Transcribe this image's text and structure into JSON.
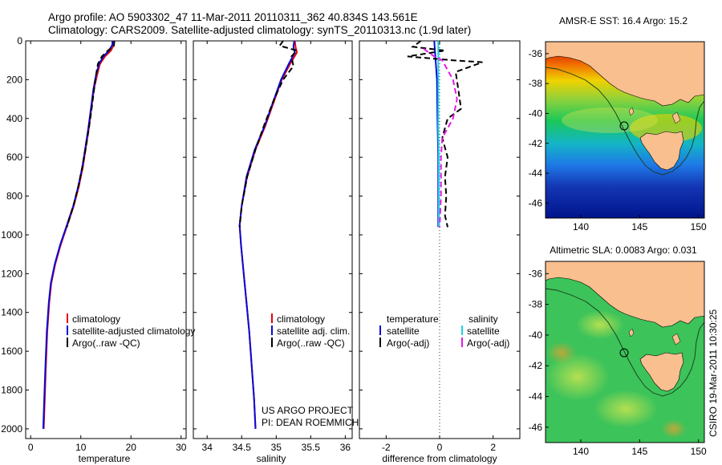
{
  "header": {
    "line1": "Argo profile: AO 5903302_47 11-Mar-2011 20110311_362 40.834S 143.561E",
    "line2": "Climatology: CARS2009. Satellite-adjusted climatology: synTS_20110313.nc (1.9d later)"
  },
  "side_text": "CSIRO 19-Mar-2011 10:30:25",
  "credit": {
    "line1": "US ARGO PROJECT",
    "line2": "PI: DEAN ROEMMICH"
  },
  "colors": {
    "climatology": "#e8000b",
    "satellite": "#0a0ad8",
    "argo": "#000000",
    "sat_salinity": "#19d2e6",
    "argo_salinity": "#e619e6",
    "land": "#f9bf8f",
    "map_line": "#1a3a1a"
  },
  "chart_data": [
    {
      "type": "line",
      "name": "temperature-profile",
      "xlabel": "temperature",
      "xlim": [
        -1,
        31
      ],
      "ylim": [
        2050,
        0
      ],
      "xticks": [
        0,
        10,
        20,
        30
      ],
      "yticks": [
        0,
        200,
        400,
        600,
        800,
        1000,
        1200,
        1400,
        1600,
        1800,
        2000
      ],
      "legend": [
        "climatology",
        "satellite-adjusted climatology",
        "Argo(..raw -QC)"
      ],
      "series": [
        {
          "name": "climatology",
          "color": "#e8000b",
          "points": [
            [
              16.6,
              0
            ],
            [
              16.6,
              20
            ],
            [
              16.0,
              50
            ],
            [
              14.8,
              80
            ],
            [
              13.8,
              120
            ],
            [
              13.2,
              180
            ],
            [
              12.6,
              250
            ],
            [
              12.1,
              350
            ],
            [
              11.6,
              450
            ],
            [
              11.0,
              550
            ],
            [
              10.4,
              650
            ],
            [
              9.6,
              750
            ],
            [
              8.6,
              850
            ],
            [
              7.3,
              950
            ],
            [
              6.0,
              1050
            ],
            [
              4.9,
              1150
            ],
            [
              4.1,
              1250
            ],
            [
              3.7,
              1350
            ],
            [
              3.3,
              1500
            ],
            [
              3.0,
              1700
            ],
            [
              2.8,
              1850
            ],
            [
              2.6,
              2000
            ]
          ]
        },
        {
          "name": "satellite-adjusted climatology",
          "color": "#0a0ad8",
          "points": [
            [
              16.3,
              0
            ],
            [
              16.3,
              20
            ],
            [
              15.6,
              50
            ],
            [
              14.5,
              80
            ],
            [
              13.6,
              120
            ],
            [
              13.0,
              180
            ],
            [
              12.5,
              250
            ],
            [
              12.0,
              350
            ],
            [
              11.5,
              450
            ],
            [
              10.9,
              550
            ],
            [
              10.3,
              650
            ],
            [
              9.5,
              750
            ],
            [
              8.5,
              850
            ],
            [
              7.2,
              950
            ],
            [
              5.9,
              1050
            ],
            [
              4.8,
              1150
            ],
            [
              4.0,
              1250
            ],
            [
              3.6,
              1350
            ],
            [
              3.2,
              1500
            ],
            [
              2.9,
              1700
            ],
            [
              2.7,
              1850
            ],
            [
              2.5,
              2000
            ]
          ]
        },
        {
          "name": "Argo(..raw -QC)",
          "color": "#000000",
          "dash": true,
          "points": [
            [
              16.7,
              0
            ],
            [
              16.6,
              25
            ],
            [
              15.4,
              50
            ],
            [
              14.2,
              80
            ],
            [
              13.4,
              120
            ],
            [
              13.0,
              180
            ],
            [
              12.6,
              260
            ],
            [
              12.1,
              360
            ],
            [
              11.6,
              450
            ],
            [
              11.0,
              550
            ],
            [
              10.3,
              650
            ],
            [
              9.5,
              750
            ],
            [
              8.5,
              850
            ],
            [
              7.2,
              960
            ]
          ]
        }
      ]
    },
    {
      "type": "line",
      "name": "salinity-profile",
      "xlabel": "salinity",
      "xlim": [
        33.8,
        36.1
      ],
      "ylim": [
        2050,
        0
      ],
      "xticks": [
        34,
        34.5,
        35,
        35.5,
        36
      ],
      "legend": [
        "climatology",
        "satellite adj. clim.",
        "Argo(..raw -QC)"
      ],
      "series": [
        {
          "name": "climatology",
          "color": "#e8000b",
          "points": [
            [
              35.27,
              0
            ],
            [
              35.28,
              30
            ],
            [
              35.3,
              60
            ],
            [
              35.2,
              120
            ],
            [
              35.08,
              200
            ],
            [
              34.98,
              300
            ],
            [
              34.84,
              440
            ],
            [
              34.7,
              560
            ],
            [
              34.58,
              700
            ],
            [
              34.5,
              850
            ],
            [
              34.47,
              950
            ],
            [
              34.49,
              1050
            ],
            [
              34.53,
              1200
            ],
            [
              34.57,
              1350
            ],
            [
              34.61,
              1500
            ],
            [
              34.65,
              1700
            ],
            [
              34.68,
              1850
            ],
            [
              34.7,
              2000
            ]
          ]
        },
        {
          "name": "satellite adj. clim.",
          "color": "#0a0ad8",
          "points": [
            [
              35.26,
              0
            ],
            [
              35.25,
              30
            ],
            [
              35.27,
              60
            ],
            [
              35.18,
              120
            ],
            [
              35.07,
              200
            ],
            [
              34.97,
              300
            ],
            [
              34.83,
              440
            ],
            [
              34.69,
              560
            ],
            [
              34.57,
              700
            ],
            [
              34.5,
              850
            ],
            [
              34.47,
              950
            ],
            [
              34.49,
              1050
            ],
            [
              34.53,
              1200
            ],
            [
              34.57,
              1350
            ],
            [
              34.61,
              1500
            ],
            [
              34.65,
              1700
            ],
            [
              34.68,
              1850
            ],
            [
              34.7,
              2000
            ]
          ]
        },
        {
          "name": "Argo(..raw -QC)",
          "color": "#000000",
          "dash": true,
          "points": [
            [
              35.1,
              0
            ],
            [
              35.05,
              25
            ],
            [
              35.3,
              50
            ],
            [
              35.22,
              80
            ],
            [
              35.25,
              130
            ],
            [
              35.1,
              200
            ],
            [
              34.97,
              300
            ],
            [
              34.83,
              430
            ],
            [
              34.7,
              560
            ],
            [
              34.58,
              700
            ],
            [
              34.5,
              850
            ],
            [
              34.47,
              960
            ]
          ]
        }
      ]
    },
    {
      "type": "line",
      "name": "difference-profile",
      "xlabel": "difference from climatology",
      "xlim": [
        -3.0,
        3.0
      ],
      "ylim": [
        2050,
        0
      ],
      "xticks": [
        -2,
        0,
        2
      ],
      "legend_columns": [
        {
          "title": "temperature",
          "items": [
            "satellite",
            "Argo(-adj)"
          ]
        },
        {
          "title": "salinity",
          "items": [
            "satellite",
            "Argo(-adj)"
          ]
        }
      ],
      "zero_line": 0,
      "series": [
        {
          "name": "temperature satellite",
          "color": "#0a0ad8",
          "points": [
            [
              -0.2,
              0
            ],
            [
              -0.15,
              100
            ],
            [
              -0.1,
              200
            ],
            [
              -0.08,
              400
            ],
            [
              -0.05,
              600
            ],
            [
              -0.05,
              800
            ],
            [
              -0.05,
              960
            ]
          ]
        },
        {
          "name": "temperature Argo(-adj)",
          "color": "#000000",
          "dash": true,
          "points": [
            [
              -0.7,
              0
            ],
            [
              -1.0,
              30
            ],
            [
              0.2,
              50
            ],
            [
              -1.2,
              80
            ],
            [
              0.5,
              100
            ],
            [
              1.6,
              110
            ],
            [
              0.6,
              160
            ],
            [
              0.7,
              250
            ],
            [
              0.8,
              350
            ],
            [
              0.3,
              400
            ],
            [
              0.1,
              500
            ],
            [
              0.3,
              600
            ],
            [
              0.2,
              700
            ],
            [
              0.25,
              800
            ],
            [
              0.2,
              900
            ],
            [
              0.3,
              960
            ]
          ]
        },
        {
          "name": "salinity satellite",
          "color": "#19d2e6",
          "points": [
            [
              -0.05,
              0
            ],
            [
              -0.05,
              50
            ],
            [
              -0.05,
              150
            ],
            [
              -0.05,
              300
            ],
            [
              -0.05,
              450
            ],
            [
              -0.03,
              600
            ],
            [
              -0.03,
              800
            ],
            [
              -0.03,
              960
            ]
          ]
        },
        {
          "name": "salinity Argo(-adj)",
          "color": "#e619e6",
          "dash": true,
          "points": [
            [
              -0.6,
              40
            ],
            [
              -0.2,
              80
            ],
            [
              0.1,
              100
            ],
            [
              0.5,
              200
            ],
            [
              0.65,
              300
            ],
            [
              0.5,
              400
            ],
            [
              0.1,
              500
            ],
            [
              0.05,
              600
            ],
            [
              0.05,
              800
            ],
            [
              0.0,
              960
            ]
          ]
        }
      ]
    },
    {
      "type": "heatmap",
      "name": "sst-map",
      "title": "AMSR-E SST: 16.4 Argo: 15.2",
      "xlim": [
        137,
        150.5
      ],
      "ylim": [
        -47,
        -35.2
      ],
      "xticks": [
        140,
        145,
        150
      ],
      "yticks": [
        -36,
        -38,
        -40,
        -42,
        -44,
        -46
      ],
      "argo_position": [
        143.561,
        -40.834
      ]
    },
    {
      "type": "heatmap",
      "name": "sla-map",
      "title": "Altimetric SLA: 0.0083 Argo: 0.031",
      "xlim": [
        137,
        150.5
      ],
      "ylim": [
        -47,
        -35.2
      ],
      "xticks": [
        140,
        145,
        150
      ],
      "yticks": [
        -36,
        -38,
        -40,
        -42,
        -44,
        -46
      ],
      "argo_position": [
        143.561,
        -40.834
      ]
    }
  ]
}
